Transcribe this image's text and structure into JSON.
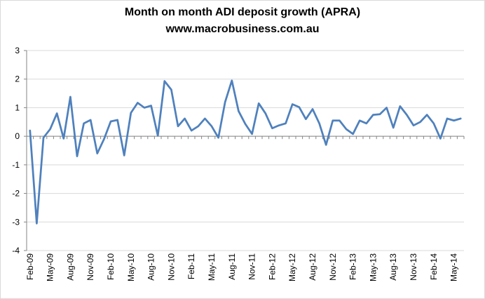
{
  "chart_data": {
    "type": "line",
    "title": "Month on month ADI deposit growth (APRA)",
    "subtitle": "www.macrobusiness.com.au",
    "xlabel": "",
    "ylabel": "",
    "ylim": [
      -4,
      3
    ],
    "yticks": [
      3,
      2,
      1,
      0,
      -1,
      -2,
      -3,
      -4
    ],
    "grid": "horizontal",
    "x_tick_labels": [
      {
        "index": 0,
        "label": "Feb-09"
      },
      {
        "index": 3,
        "label": "May-09"
      },
      {
        "index": 6,
        "label": "Aug-09"
      },
      {
        "index": 9,
        "label": "Nov-09"
      },
      {
        "index": 12,
        "label": "Feb-10"
      },
      {
        "index": 15,
        "label": "May-10"
      },
      {
        "index": 18,
        "label": "Aug-10"
      },
      {
        "index": 21,
        "label": "Nov-10"
      },
      {
        "index": 24,
        "label": "Feb-11"
      },
      {
        "index": 27,
        "label": "May-11"
      },
      {
        "index": 30,
        "label": "Aug-11"
      },
      {
        "index": 33,
        "label": "Nov-11"
      },
      {
        "index": 36,
        "label": "Feb-12"
      },
      {
        "index": 39,
        "label": "May-12"
      },
      {
        "index": 42,
        "label": "Aug-12"
      },
      {
        "index": 45,
        "label": "Nov-12"
      },
      {
        "index": 48,
        "label": "Feb-13"
      },
      {
        "index": 51,
        "label": "May-13"
      },
      {
        "index": 54,
        "label": "Aug-13"
      },
      {
        "index": 57,
        "label": "Nov-13"
      },
      {
        "index": 60,
        "label": "Feb-14"
      },
      {
        "index": 63,
        "label": "May-14"
      }
    ],
    "series": [
      {
        "name": "Month on month ADI deposit growth",
        "color": "#4f81bd",
        "values": [
          0.2,
          -3.05,
          -0.05,
          0.25,
          0.8,
          -0.08,
          1.38,
          -0.7,
          0.45,
          0.57,
          -0.6,
          -0.1,
          0.52,
          0.57,
          -0.67,
          0.82,
          1.17,
          1.0,
          1.07,
          0.02,
          1.93,
          1.63,
          0.35,
          0.62,
          0.2,
          0.35,
          0.62,
          0.35,
          -0.05,
          1.2,
          1.95,
          0.88,
          0.43,
          0.08,
          1.15,
          0.8,
          0.28,
          0.38,
          0.45,
          1.12,
          1.02,
          0.6,
          0.95,
          0.45,
          -0.3,
          0.55,
          0.55,
          0.25,
          0.08,
          0.55,
          0.45,
          0.75,
          0.77,
          1.0,
          0.3,
          1.05,
          0.75,
          0.38,
          0.5,
          0.75,
          0.45,
          -0.08,
          0.62,
          0.55,
          0.62
        ]
      }
    ]
  }
}
